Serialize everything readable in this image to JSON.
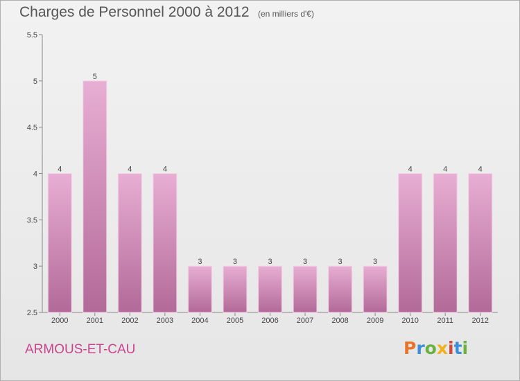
{
  "header": {
    "title": "Charges de Personnel 2000 à 2012",
    "unit": "(en milliers d'€)"
  },
  "footer": {
    "town": "ARMOUS-ET-CAU",
    "brand": "Proxiti",
    "brand_colors": [
      "#e8742a",
      "#3b8fd6",
      "#6ab23e",
      "#f0b21c",
      "#d2483a",
      "#3b8fd6",
      "#6ab23e"
    ]
  },
  "colors": {
    "bar": "#d996c0",
    "bar_dark": "#b26a98",
    "town": "#c8458e"
  },
  "chart_data": {
    "type": "bar",
    "categories": [
      "2000",
      "2001",
      "2002",
      "2003",
      "2004",
      "2005",
      "2006",
      "2007",
      "2008",
      "2009",
      "2010",
      "2011",
      "2012"
    ],
    "values": [
      4,
      5,
      4,
      4,
      3,
      3,
      3,
      3,
      3,
      3,
      4,
      4,
      4
    ],
    "data_labels": [
      "4",
      "5",
      "4",
      "4",
      "3",
      "3",
      "3",
      "3",
      "3",
      "3",
      "4",
      "4",
      "4"
    ],
    "title": "Charges de Personnel 2000 à 2012",
    "xlabel": "",
    "ylabel": "",
    "ylim": [
      2.5,
      5.5
    ],
    "yticks": [
      2.5,
      3,
      3.5,
      4,
      4.5,
      5,
      5.5
    ],
    "ytick_labels": [
      "2.5",
      "3",
      "3.5",
      "4",
      "4.5",
      "5",
      "5.5"
    ],
    "grid": false,
    "legend": "none"
  }
}
